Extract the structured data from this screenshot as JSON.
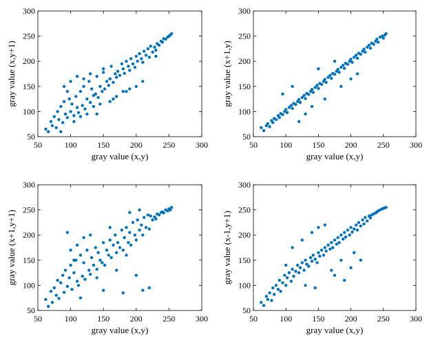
{
  "chart_data": [
    {
      "type": "scatter",
      "title": "",
      "xlabel": "gray value (x,y)",
      "ylabel": "gray value (x,y+1)",
      "xlim": [
        50,
        300
      ],
      "ylim": [
        50,
        300
      ],
      "xticks": [
        50,
        100,
        150,
        200,
        250,
        300
      ],
      "yticks": [
        50,
        100,
        150,
        200,
        250,
        300
      ],
      "grid": false,
      "marker_color": "#0072BD",
      "x": [
        62,
        66,
        70,
        72,
        75,
        78,
        80,
        82,
        85,
        88,
        90,
        92,
        95,
        98,
        100,
        102,
        105,
        108,
        110,
        112,
        115,
        118,
        120,
        122,
        125,
        128,
        130,
        132,
        135,
        138,
        140,
        142,
        145,
        148,
        150,
        152,
        155,
        158,
        160,
        162,
        165,
        168,
        170,
        172,
        175,
        178,
        180,
        182,
        185,
        188,
        190,
        192,
        195,
        198,
        200,
        202,
        205,
        208,
        210,
        212,
        215,
        218,
        220,
        222,
        225,
        228,
        230,
        232,
        235,
        238,
        240,
        242,
        245,
        248,
        250,
        252,
        254,
        90,
        100,
        110,
        120,
        130,
        140,
        160,
        180,
        200,
        85,
        95,
        115,
        135,
        150,
        170,
        190,
        210,
        230,
        105,
        125,
        145,
        165,
        185
      ],
      "y": [
        65,
        60,
        80,
        72,
        90,
        68,
        100,
        84,
        110,
        78,
        120,
        95,
        88,
        125,
        100,
        115,
        92,
        130,
        108,
        98,
        140,
        112,
        150,
        105,
        125,
        160,
        118,
        145,
        132,
        135,
        170,
        128,
        150,
        140,
        178,
        145,
        160,
        152,
        165,
        190,
        158,
        175,
        168,
        180,
        172,
        195,
        185,
        176,
        200,
        190,
        182,
        205,
        195,
        188,
        210,
        200,
        215,
        205,
        198,
        220,
        212,
        225,
        208,
        230,
        218,
        228,
        222,
        235,
        232,
        240,
        238,
        245,
        244,
        248,
        250,
        252,
        255,
        150,
        160,
        170,
        165,
        175,
        95,
        120,
        140,
        150,
        60,
        140,
        90,
        110,
        185,
        130,
        145,
        160,
        210,
        80,
        95,
        115,
        125,
        140
      ]
    },
    {
      "type": "scatter",
      "title": "",
      "xlabel": "gray value (x,y)",
      "ylabel": "gray value (x+1,y)",
      "xlim": [
        50,
        300
      ],
      "ylim": [
        50,
        300
      ],
      "xticks": [
        50,
        100,
        150,
        200,
        250,
        300
      ],
      "yticks": [
        50,
        100,
        150,
        200,
        250,
        300
      ],
      "grid": false,
      "marker_color": "#0072BD",
      "x": [
        62,
        66,
        70,
        72,
        75,
        78,
        80,
        82,
        85,
        88,
        90,
        92,
        95,
        98,
        100,
        102,
        105,
        108,
        110,
        112,
        115,
        118,
        120,
        122,
        125,
        128,
        130,
        132,
        135,
        138,
        140,
        142,
        145,
        148,
        150,
        152,
        155,
        158,
        160,
        162,
        165,
        168,
        170,
        172,
        175,
        178,
        180,
        182,
        185,
        188,
        190,
        192,
        195,
        198,
        200,
        202,
        205,
        208,
        210,
        212,
        215,
        218,
        220,
        222,
        225,
        228,
        230,
        232,
        235,
        238,
        240,
        242,
        245,
        248,
        250,
        252,
        254,
        95,
        110,
        130,
        150,
        175,
        200,
        120,
        140,
        160,
        185,
        210
      ],
      "y": [
        68,
        62,
        72,
        76,
        70,
        82,
        78,
        86,
        84,
        92,
        88,
        96,
        94,
        100,
        104,
        98,
        108,
        112,
        106,
        116,
        114,
        120,
        124,
        118,
        128,
        132,
        126,
        136,
        134,
        140,
        144,
        138,
        148,
        152,
        146,
        156,
        154,
        160,
        164,
        158,
        168,
        172,
        166,
        176,
        174,
        180,
        184,
        178,
        188,
        192,
        186,
        196,
        194,
        200,
        204,
        198,
        208,
        212,
        206,
        216,
        214,
        220,
        224,
        218,
        228,
        232,
        226,
        236,
        234,
        240,
        244,
        238,
        248,
        250,
        246,
        252,
        255,
        135,
        150,
        95,
        185,
        200,
        165,
        80,
        110,
        125,
        150,
        175
      ]
    },
    {
      "type": "scatter",
      "title": "",
      "xlabel": "gray value (x,y)",
      "ylabel": "gray value (x+1,y+1)",
      "xlim": [
        50,
        300
      ],
      "ylim": [
        50,
        300
      ],
      "xticks": [
        50,
        100,
        150,
        200,
        250,
        300
      ],
      "yticks": [
        50,
        100,
        150,
        200,
        250,
        300
      ],
      "grid": false,
      "marker_color": "#0072BD",
      "x": [
        62,
        66,
        70,
        72,
        75,
        78,
        80,
        82,
        85,
        88,
        90,
        92,
        95,
        98,
        100,
        102,
        105,
        108,
        110,
        112,
        115,
        118,
        120,
        122,
        125,
        128,
        130,
        132,
        135,
        138,
        140,
        142,
        145,
        148,
        150,
        152,
        155,
        158,
        160,
        162,
        165,
        168,
        170,
        172,
        175,
        178,
        180,
        182,
        185,
        188,
        190,
        192,
        195,
        198,
        200,
        202,
        205,
        208,
        210,
        212,
        215,
        218,
        220,
        222,
        225,
        228,
        230,
        232,
        235,
        238,
        240,
        242,
        245,
        248,
        250,
        252,
        254,
        95,
        100,
        110,
        120,
        130,
        150,
        170,
        180,
        200,
        210,
        220,
        190,
        160,
        140,
        115,
        105,
        185,
        205
      ],
      "y": [
        72,
        58,
        88,
        66,
        95,
        80,
        110,
        74,
        105,
        120,
        86,
        130,
        98,
        115,
        140,
        92,
        125,
        150,
        108,
        100,
        160,
        118,
        145,
        112,
        170,
        130,
        122,
        155,
        140,
        175,
        132,
        165,
        150,
        145,
        185,
        140,
        170,
        160,
        190,
        155,
        180,
        200,
        165,
        185,
        175,
        210,
        170,
        195,
        215,
        185,
        205,
        180,
        225,
        200,
        190,
        230,
        210,
        220,
        200,
        235,
        215,
        240,
        212,
        238,
        230,
        236,
        232,
        242,
        240,
        245,
        246,
        244,
        250,
        248,
        252,
        250,
        255,
        205,
        170,
        180,
        195,
        200,
        90,
        130,
        85,
        120,
        90,
        95,
        245,
        215,
        115,
        75,
        150,
        160,
        250
      ]
    },
    {
      "type": "scatter",
      "title": "",
      "xlabel": "gray value (x,y)",
      "ylabel": "gray value (x-1,y+1)",
      "xlim": [
        50,
        300
      ],
      "ylim": [
        50,
        300
      ],
      "xticks": [
        50,
        100,
        150,
        200,
        250,
        300
      ],
      "yticks": [
        50,
        100,
        150,
        200,
        250,
        300
      ],
      "grid": false,
      "marker_color": "#0072BD",
      "x": [
        62,
        66,
        70,
        72,
        75,
        78,
        80,
        82,
        85,
        88,
        90,
        92,
        95,
        98,
        100,
        102,
        105,
        108,
        110,
        112,
        115,
        118,
        120,
        122,
        125,
        128,
        130,
        132,
        135,
        138,
        140,
        142,
        145,
        148,
        150,
        152,
        155,
        158,
        160,
        162,
        165,
        168,
        170,
        172,
        175,
        178,
        180,
        182,
        185,
        188,
        190,
        192,
        195,
        198,
        200,
        202,
        205,
        208,
        210,
        212,
        215,
        218,
        220,
        222,
        225,
        228,
        230,
        232,
        235,
        238,
        240,
        242,
        245,
        248,
        250,
        252,
        254,
        110,
        125,
        140,
        150,
        160,
        175,
        190,
        200,
        215,
        130,
        145,
        170,
        185,
        205,
        100
      ],
      "y": [
        66,
        60,
        78,
        72,
        85,
        70,
        95,
        82,
        100,
        92,
        110,
        88,
        105,
        120,
        100,
        115,
        125,
        108,
        132,
        118,
        128,
        140,
        125,
        135,
        145,
        130,
        150,
        142,
        138,
        155,
        148,
        160,
        152,
        145,
        165,
        158,
        170,
        160,
        175,
        168,
        180,
        172,
        185,
        175,
        190,
        182,
        195,
        185,
        200,
        192,
        205,
        196,
        210,
        200,
        215,
        206,
        212,
        220,
        210,
        225,
        218,
        230,
        222,
        235,
        228,
        238,
        234,
        240,
        242,
        244,
        246,
        248,
        250,
        252,
        253,
        254,
        255,
        175,
        190,
        205,
        215,
        220,
        120,
        110,
        135,
        150,
        100,
        95,
        130,
        150,
        165,
        140
      ]
    }
  ]
}
